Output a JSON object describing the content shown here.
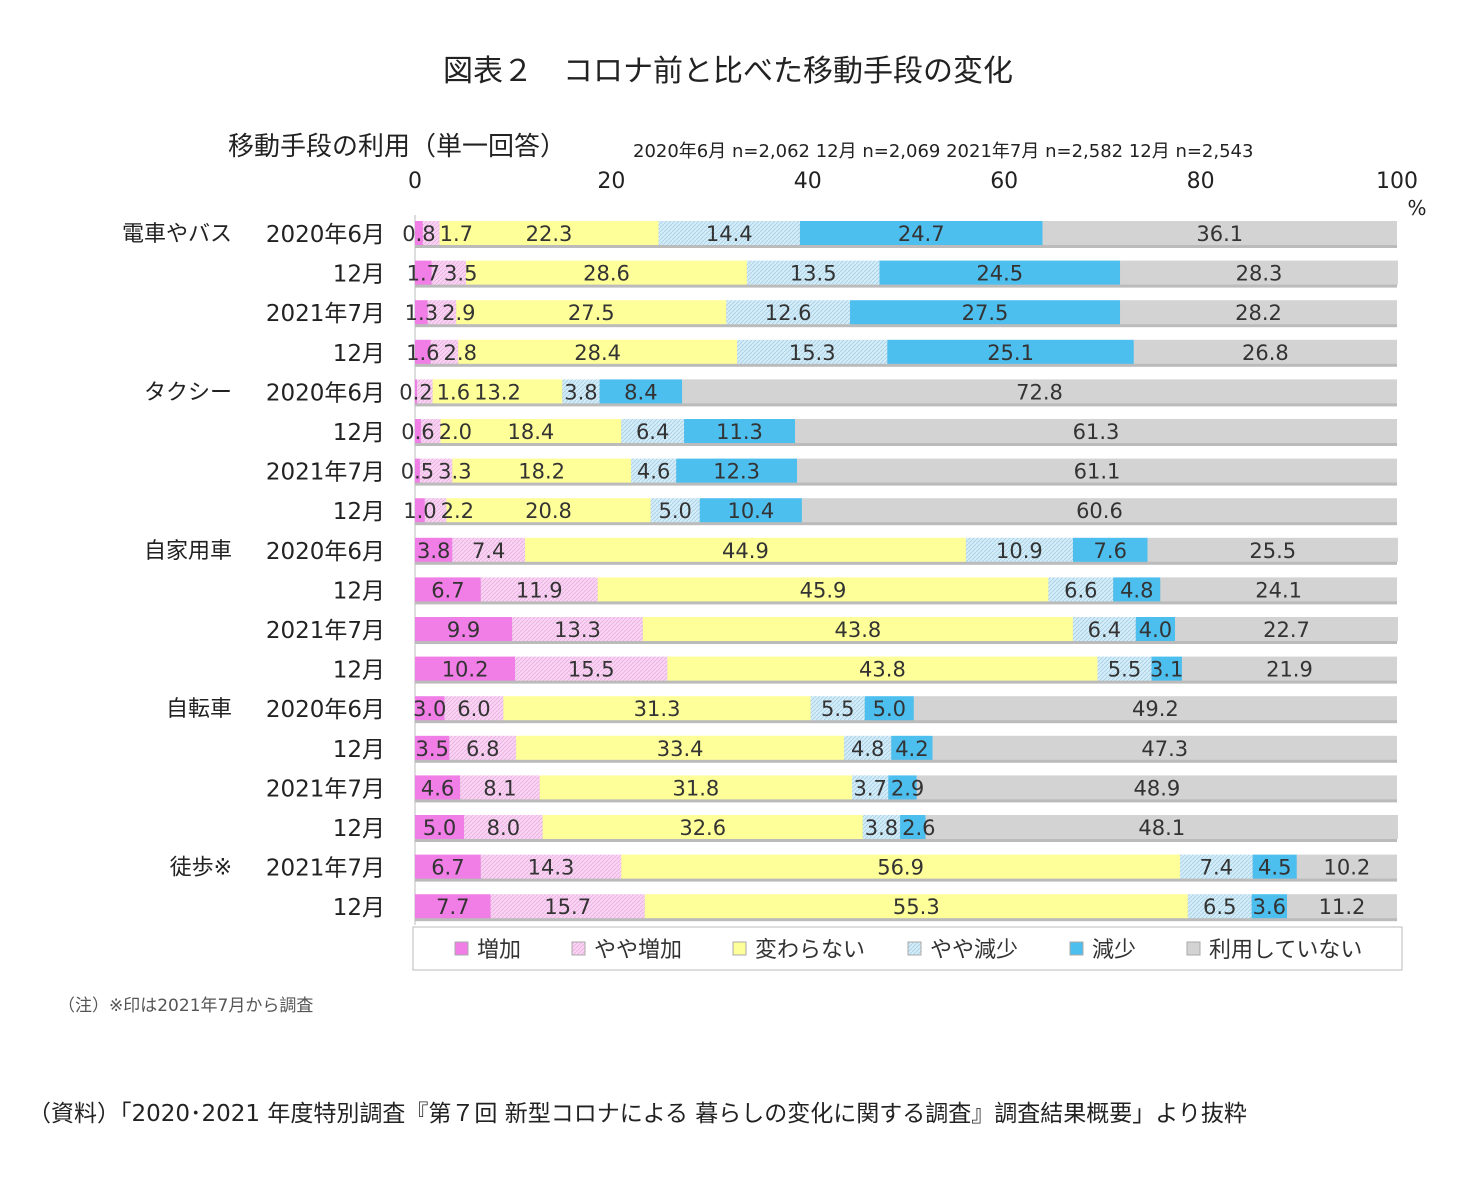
{
  "title": "図表２　コロナ前と比べた移動手段の変化",
  "note": "（注）※印は2021年7月から調査",
  "source": "（資料）「2020･2021 年度特別調査『第７回 新型コロナによる 暮らしの変化に関する調査』調査結果概要」より抜粋",
  "chart_data": {
    "type": "bar",
    "orientation": "horizontal-stacked-100",
    "title": "移動手段の利用（単一回答）",
    "subtitle": "2020年6月 n=2,062 12月 n=2,069  2021年7月 n=2,582 12月 n=2,543",
    "xlim": [
      0,
      100
    ],
    "xticks": [
      "0",
      "20",
      "40",
      "60",
      "80",
      "100"
    ],
    "xunit": "%",
    "legend_position": "bottom",
    "series_names": [
      "増加",
      "やや増加",
      "変わらない",
      "やや減少",
      "減少",
      "利用していない"
    ],
    "colors": [
      "#f07ee6",
      "#f8d4f2",
      "#ffff99",
      "#d4ecf8",
      "#4dbfef",
      "#d3d3d3"
    ],
    "rows": [
      {
        "group": "電車やバス",
        "period": "2020年6月",
        "values": [
          0.8,
          1.7,
          22.3,
          14.4,
          24.7,
          36.1
        ]
      },
      {
        "group": "",
        "period": "12月",
        "values": [
          1.7,
          3.5,
          28.6,
          13.5,
          24.5,
          28.3
        ]
      },
      {
        "group": "",
        "period": "2021年7月",
        "values": [
          1.3,
          2.9,
          27.5,
          12.6,
          27.5,
          28.2
        ]
      },
      {
        "group": "",
        "period": "12月",
        "values": [
          1.6,
          2.8,
          28.4,
          15.3,
          25.1,
          26.8
        ]
      },
      {
        "group": "タクシー",
        "period": "2020年6月",
        "values": [
          0.2,
          1.6,
          13.2,
          3.8,
          8.4,
          72.8
        ]
      },
      {
        "group": "",
        "period": "12月",
        "values": [
          0.6,
          2.0,
          18.4,
          6.4,
          11.3,
          61.3
        ]
      },
      {
        "group": "",
        "period": "2021年7月",
        "values": [
          0.5,
          3.3,
          18.2,
          4.6,
          12.3,
          61.1
        ]
      },
      {
        "group": "",
        "period": "12月",
        "values": [
          1.0,
          2.2,
          20.8,
          5.0,
          10.4,
          60.6
        ]
      },
      {
        "group": "自家用車",
        "period": "2020年6月",
        "values": [
          3.8,
          7.4,
          44.9,
          10.9,
          7.6,
          25.5
        ]
      },
      {
        "group": "",
        "period": "12月",
        "values": [
          6.7,
          11.9,
          45.9,
          6.6,
          4.8,
          24.1
        ]
      },
      {
        "group": "",
        "period": "2021年7月",
        "values": [
          9.9,
          13.3,
          43.8,
          6.4,
          4.0,
          22.7
        ]
      },
      {
        "group": "",
        "period": "12月",
        "values": [
          10.2,
          15.5,
          43.8,
          5.5,
          3.1,
          21.9
        ]
      },
      {
        "group": "自転車",
        "period": "2020年6月",
        "values": [
          3.0,
          6.0,
          31.3,
          5.5,
          5.0,
          49.2
        ]
      },
      {
        "group": "",
        "period": "12月",
        "values": [
          3.5,
          6.8,
          33.4,
          4.8,
          4.2,
          47.3
        ]
      },
      {
        "group": "",
        "period": "2021年7月",
        "values": [
          4.6,
          8.1,
          31.8,
          3.7,
          2.9,
          48.9
        ]
      },
      {
        "group": "",
        "period": "12月",
        "values": [
          5.0,
          8.0,
          32.6,
          3.8,
          2.6,
          48.1
        ]
      },
      {
        "group": "徒歩※",
        "period": "2021年7月",
        "values": [
          6.7,
          14.3,
          56.9,
          7.4,
          4.5,
          10.2
        ]
      },
      {
        "group": "",
        "period": "12月",
        "values": [
          7.7,
          15.7,
          55.3,
          6.5,
          3.6,
          11.2
        ]
      }
    ]
  }
}
